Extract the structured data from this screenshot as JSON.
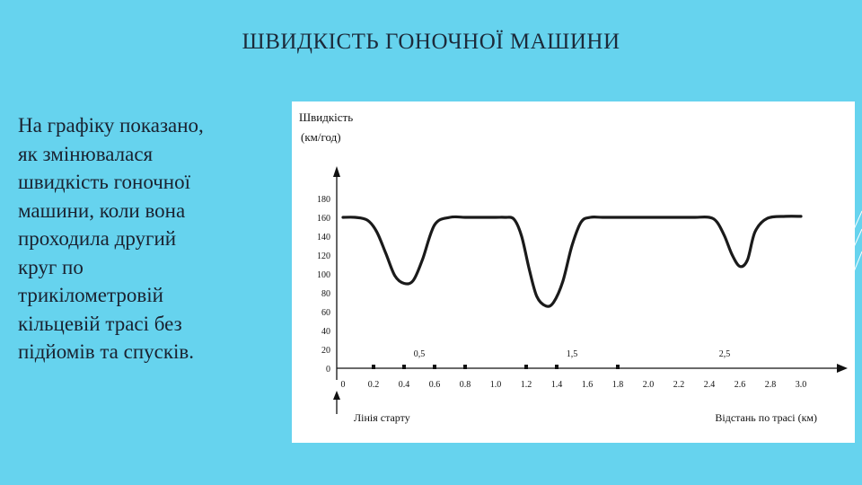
{
  "slide": {
    "title": "ШВИДКІСТЬ ГОНОЧНОЇ МАШИНИ",
    "description_lines": [
      "На графіку показано,",
      "як змінювалася",
      "швидкість гоночної",
      "машини, коли вона",
      "проходила другий",
      "круг по",
      "трикілометровій",
      "кільцевій трасі без",
      "підйомів та спусків."
    ]
  },
  "colors": {
    "background": "#66d3ee",
    "title_text": "#1c2a3a",
    "body_text": "#1a2230",
    "curve": "#1a1a1a",
    "axis": "#111111"
  },
  "chart_data": {
    "type": "line",
    "title": "",
    "ylabel_line1": "Швидкість",
    "ylabel_line2": "(км/год)",
    "xlabel": "Відстань по трасі (км)",
    "start_label": "Лінія старту",
    "xlim": [
      0,
      3.0
    ],
    "ylim": [
      0,
      180
    ],
    "y_ticks": [
      0,
      20,
      40,
      60,
      80,
      100,
      120,
      140,
      160,
      180
    ],
    "y_tick_labels": [
      "0",
      "20",
      "40",
      "60",
      "80",
      "100",
      "120",
      "140",
      "160",
      "180"
    ],
    "x_ticks": [
      0,
      0.2,
      0.4,
      0.6,
      0.8,
      1.0,
      1.2,
      1.4,
      1.6,
      1.8,
      2.0,
      2.2,
      2.4,
      2.6,
      2.8,
      3.0
    ],
    "x_tick_labels": [
      "0",
      "0.2",
      "0.4",
      "0.6",
      "0.8",
      "1.0",
      "1.2",
      "1.4",
      "1.6",
      "1.8",
      "2.0",
      "2.2",
      "2.4",
      "2.6",
      "2.8",
      "3.0"
    ],
    "x_markers": [
      0.2,
      0.4,
      0.6,
      0.8,
      1.2,
      1.4,
      1.8
    ],
    "mid_labels": [
      {
        "x": 0.5,
        "text": "0,5"
      },
      {
        "x": 1.5,
        "text": "1,5"
      },
      {
        "x": 2.5,
        "text": "2,5"
      }
    ],
    "grid": false,
    "series": [
      {
        "x": [
          0,
          0.08,
          0.16,
          0.22,
          0.28,
          0.34,
          0.4,
          0.46,
          0.52,
          0.6,
          0.7,
          0.8,
          0.9,
          1.0,
          1.06,
          1.12,
          1.17,
          1.22,
          1.27,
          1.33,
          1.38,
          1.44,
          1.5,
          1.56,
          1.62,
          1.7,
          1.8,
          1.9,
          2.0,
          2.1,
          2.2,
          2.3,
          2.4,
          2.45,
          2.5,
          2.55,
          2.6,
          2.65,
          2.7,
          2.78,
          2.9,
          3.0
        ],
        "y": [
          160,
          160,
          157,
          145,
          122,
          98,
          90,
          93,
          115,
          152,
          160,
          160,
          160,
          160,
          160,
          158,
          140,
          105,
          76,
          66,
          70,
          92,
          130,
          155,
          160,
          160,
          160,
          160,
          160,
          160,
          160,
          160,
          160,
          155,
          140,
          120,
          108,
          115,
          145,
          159,
          161,
          161
        ]
      }
    ]
  }
}
